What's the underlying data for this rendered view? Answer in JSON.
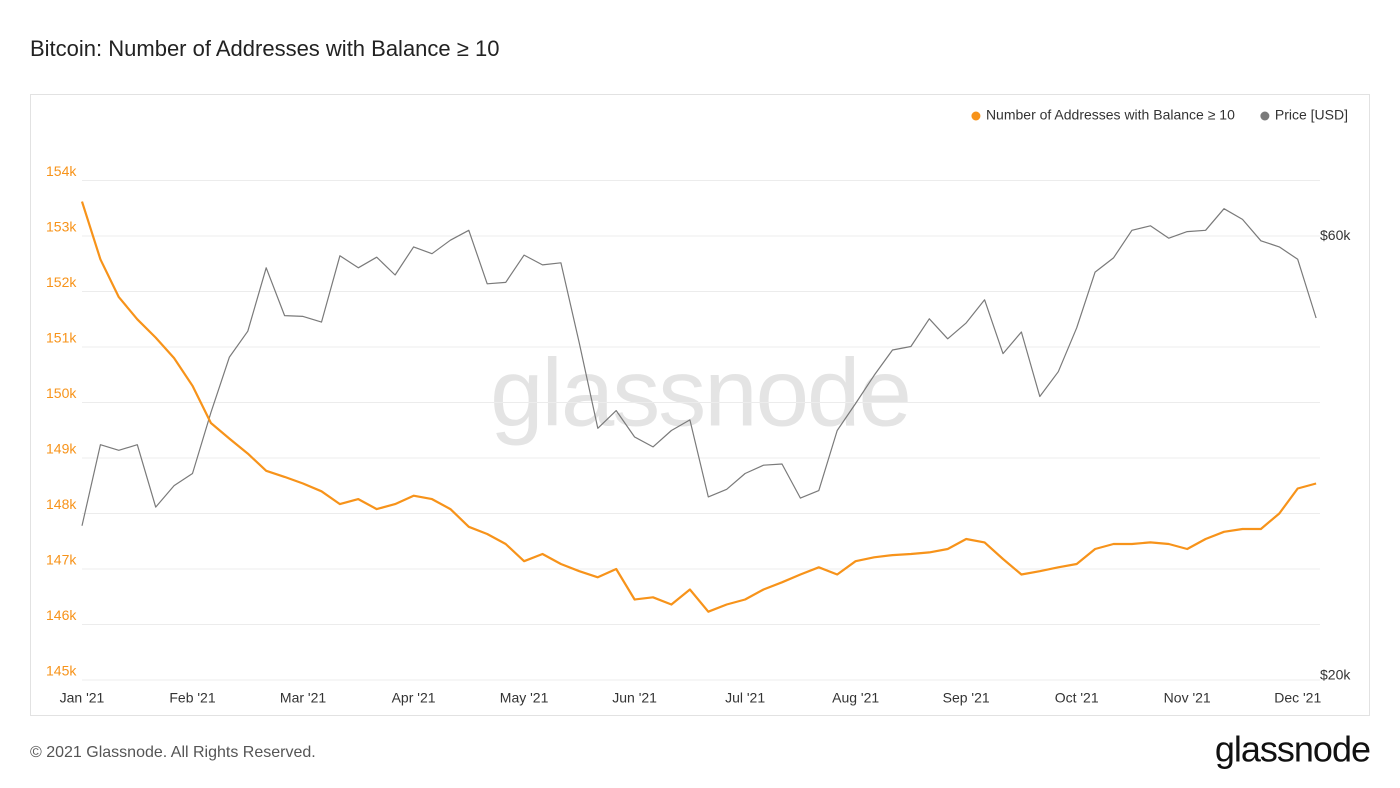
{
  "chart_data": {
    "type": "line",
    "title": "Bitcoin: Number of Addresses with Balance ≥ 10",
    "watermark": "glassnode",
    "categories": [
      "Jan '21",
      null,
      null,
      null,
      null,
      null,
      "Feb '21",
      null,
      null,
      null,
      null,
      null,
      "Mar '21",
      null,
      null,
      null,
      null,
      null,
      "Apr '21",
      null,
      null,
      null,
      null,
      null,
      "May '21",
      null,
      null,
      null,
      null,
      null,
      "Jun '21",
      null,
      null,
      null,
      null,
      null,
      "Jul '21",
      null,
      null,
      null,
      null,
      null,
      "Aug '21",
      null,
      null,
      null,
      null,
      null,
      "Sep '21",
      null,
      null,
      null,
      null,
      null,
      "Oct '21",
      null,
      null,
      null,
      null,
      null,
      "Nov '21",
      null,
      null,
      null,
      null,
      null,
      "Dec '21",
      null
    ],
    "series": [
      {
        "name": "Number of Addresses with Balance ≥ 10",
        "color": "#f7931a",
        "axis": "y",
        "values": [
          153620,
          152580,
          151900,
          151500,
          151170,
          150800,
          150300,
          149630,
          149350,
          149080,
          148770,
          148660,
          148540,
          148400,
          148170,
          148260,
          148080,
          148170,
          148320,
          148260,
          148080,
          147760,
          147630,
          147450,
          147140,
          147270,
          147090,
          146960,
          146850,
          147000,
          146450,
          146490,
          146360,
          146630,
          146230,
          146360,
          146450,
          146630,
          146760,
          146900,
          147030,
          146900,
          147140,
          147210,
          147250,
          147270,
          147300,
          147360,
          147540,
          147480,
          147180,
          146900,
          146960,
          147030,
          147090,
          147360,
          147450,
          147450,
          147480,
          147450,
          147360,
          147540,
          147670,
          147720,
          147720,
          148000,
          148450,
          148540
        ]
      },
      {
        "name": "Price [USD]",
        "color": "#7a7a7a",
        "axis": "y2",
        "values": [
          29400,
          36000,
          35500,
          36000,
          30800,
          32500,
          33500,
          39000,
          44800,
          47800,
          56000,
          49700,
          49600,
          48900,
          57700,
          56000,
          57500,
          55000,
          59000,
          58000,
          60000,
          61500,
          53800,
          54000,
          57800,
          56400,
          56700,
          46400,
          37500,
          39200,
          36700,
          35800,
          37300,
          38300,
          31600,
          32200,
          33500,
          34200,
          34300,
          31500,
          32100,
          37300,
          39900,
          42800,
          45600,
          46000,
          49300,
          46900,
          48800,
          51700,
          45200,
          47700,
          40600,
          43200,
          48200,
          55400,
          57400,
          61500,
          62200,
          60300,
          61300,
          61500,
          64900,
          63200,
          59900,
          59000,
          57200,
          49400
        ]
      }
    ],
    "ylim": [
      145000,
      155000
    ],
    "yticks": [
      {
        "value": 145000,
        "label": "145k"
      },
      {
        "value": 146000,
        "label": "146k"
      },
      {
        "value": 147000,
        "label": "147k"
      },
      {
        "value": 148000,
        "label": "148k"
      },
      {
        "value": 149000,
        "label": "149k"
      },
      {
        "value": 150000,
        "label": "150k"
      },
      {
        "value": 151000,
        "label": "151k"
      },
      {
        "value": 152000,
        "label": "152k"
      },
      {
        "value": 153000,
        "label": "153k"
      },
      {
        "value": 154000,
        "label": "154k"
      }
    ],
    "y2lim": [
      20000,
      80000
    ],
    "y2ticks": [
      {
        "value": 20000,
        "label": "$20k"
      },
      {
        "value": 60000,
        "label": "$60k"
      }
    ],
    "y2scale": "log",
    "grid": true,
    "legend": "top-right"
  },
  "footer": {
    "copyright": "© 2021 Glassnode. All Rights Reserved.",
    "logo": "glassnode"
  }
}
